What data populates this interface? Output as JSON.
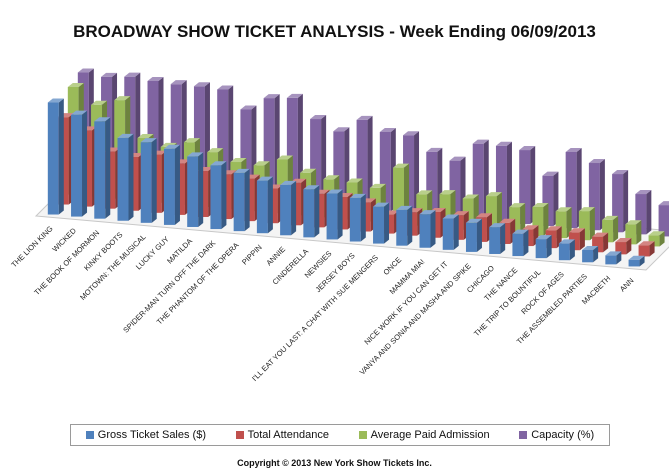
{
  "chart_data": {
    "type": "bar",
    "title": "BROADWAY SHOW TICKET ANALYSIS - Week Ending 06/09/2013",
    "xlabel": "",
    "ylabel": "",
    "ylim": [
      0,
      100
    ],
    "normalized": true,
    "categories": [
      "THE LION KING",
      "WICKED",
      "THE BOOK OF MORMON",
      "KINKY BOOTS",
      "MOTOWN: THE MUSICAL",
      "LUCKY GUY",
      "MATILDA",
      "SPIDER-MAN TURN OFF THE DARK",
      "THE PHANTOM OF THE OPERA",
      "PIPPIN",
      "ANNIE",
      "CINDERELLA",
      "NEWSIES",
      "JERSEY BOYS",
      "I'LL EAT YOU LAST: A CHAT WITH SUE MENGERS",
      "ONCE",
      "MAMMA MIA!",
      "NICE WORK IF YOU CAN GET IT",
      "VANYA AND SONIA AND MASHA AND SPIKE",
      "CHICAGO",
      "THE NANCE",
      "THE TRIP TO BOUNTIFUL",
      "ROCK OF AGES",
      "THE ASSEMBLED PARTIES",
      "MACBETH",
      "ANN"
    ],
    "series": [
      {
        "name": "Gross Ticket Sales ($)",
        "color": "#4f81bd",
        "values": [
          100,
          91,
          87,
          74,
          72,
          68,
          63,
          57,
          52,
          47,
          45,
          43,
          41,
          39,
          33,
          32,
          30,
          28,
          26,
          24,
          20,
          17,
          15,
          11,
          8,
          6
        ]
      },
      {
        "name": "Total Attendance",
        "color": "#c0504d",
        "values": [
          78,
          68,
          51,
          48,
          52,
          46,
          41,
          40,
          38,
          31,
          38,
          30,
          29,
          26,
          17,
          21,
          23,
          22,
          22,
          19,
          15,
          16,
          16,
          14,
          11,
          10
        ]
      },
      {
        "name": "Average Paid Admission",
        "color": "#9bbb59",
        "values": [
          96,
          82,
          88,
          56,
          50,
          56,
          49,
          42,
          41,
          48,
          38,
          34,
          33,
          30,
          50,
          28,
          30,
          28,
          32,
          24,
          26,
          24,
          26,
          20,
          18,
          10
        ]
      },
      {
        "name": "Capacity (%)",
        "color": "#8064a2",
        "values": [
          100,
          98,
          100,
          98,
          97,
          97,
          96,
          80,
          92,
          94,
          77,
          68,
          80,
          71,
          70,
          57,
          51,
          68,
          68,
          66,
          45,
          68,
          60,
          52,
          36,
          28
        ]
      }
    ]
  },
  "legend": {
    "s0": "Gross Ticket Sales ($)",
    "s1": "Total Attendance",
    "s2": "Average Paid Admission",
    "s3": "Capacity (%)"
  },
  "colors": {
    "s0": "#4f81bd",
    "s1": "#c0504d",
    "s2": "#9bbb59",
    "s3": "#8064a2"
  },
  "footer": {
    "copyright": "Copyright © 2013 New York Show Tickets Inc."
  }
}
